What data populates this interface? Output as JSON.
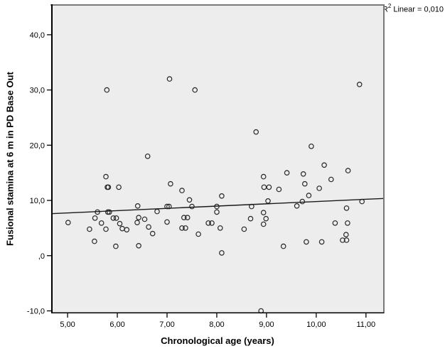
{
  "chart_data": {
    "type": "scatter",
    "title": "",
    "xlabel": "Chronological age (years)",
    "ylabel": "Fusional stamina at 6 m in PD Base Out",
    "annotation": {
      "base": "R",
      "sup": "2",
      "rest": " Linear = 0,010"
    },
    "legend": "none",
    "grid": false,
    "xlim": [
      4.67,
      11.36
    ],
    "ylim": [
      -10.45,
      45.52
    ],
    "x_ticks": {
      "values": [
        5,
        6,
        7,
        8,
        9,
        10,
        11
      ],
      "labels": [
        "5,00",
        "6,00",
        "7,00",
        "8,00",
        "9,00",
        "10,00",
        "11,00"
      ]
    },
    "y_ticks": {
      "values": [
        40,
        30,
        20,
        10,
        0,
        -10
      ],
      "labels": [
        "40,0",
        "30,0",
        "20,0",
        "10,0",
        ",0",
        "-10,0"
      ]
    },
    "regression_line": {
      "x1": 4.67,
      "y1": 7.6,
      "x2": 11.36,
      "y2": 10.36,
      "r2": 0.01
    },
    "points": [
      [
        5.01,
        6.0
      ],
      [
        5.44,
        4.8
      ],
      [
        5.54,
        2.6
      ],
      [
        5.55,
        6.8
      ],
      [
        5.6,
        7.9
      ],
      [
        5.68,
        5.9
      ],
      [
        5.77,
        14.3
      ],
      [
        5.77,
        4.8
      ],
      [
        5.79,
        30.0
      ],
      [
        5.8,
        12.4
      ],
      [
        5.82,
        12.4
      ],
      [
        5.81,
        7.9
      ],
      [
        5.84,
        7.9
      ],
      [
        5.92,
        6.8
      ],
      [
        5.97,
        1.7
      ],
      [
        5.98,
        6.8
      ],
      [
        6.03,
        12.4
      ],
      [
        6.05,
        5.8
      ],
      [
        6.1,
        4.9
      ],
      [
        6.19,
        4.7
      ],
      [
        6.4,
        6.0
      ],
      [
        6.41,
        9.0
      ],
      [
        6.43,
        6.9
      ],
      [
        6.43,
        1.8
      ],
      [
        6.55,
        6.6
      ],
      [
        6.61,
        18.0
      ],
      [
        6.63,
        5.2
      ],
      [
        6.71,
        4.0
      ],
      [
        6.8,
        8.0
      ],
      [
        7.0,
        8.9
      ],
      [
        7.04,
        8.9
      ],
      [
        7.0,
        6.1
      ],
      [
        7.05,
        32.0
      ],
      [
        7.07,
        13.0
      ],
      [
        7.3,
        11.8
      ],
      [
        7.3,
        5.0
      ],
      [
        7.34,
        6.9
      ],
      [
        7.37,
        5.0
      ],
      [
        7.41,
        6.9
      ],
      [
        7.45,
        10.1
      ],
      [
        7.5,
        8.9
      ],
      [
        7.56,
        30.0
      ],
      [
        7.63,
        3.9
      ],
      [
        7.83,
        5.9
      ],
      [
        7.9,
        5.9
      ],
      [
        8.0,
        8.9
      ],
      [
        8.0,
        7.9
      ],
      [
        8.07,
        5.0
      ],
      [
        8.1,
        10.8
      ],
      [
        8.1,
        0.5
      ],
      [
        8.55,
        4.8
      ],
      [
        8.68,
        6.7
      ],
      [
        8.7,
        8.9
      ],
      [
        8.79,
        22.4
      ],
      [
        8.89,
        -10.0
      ],
      [
        8.94,
        14.3
      ],
      [
        8.94,
        7.8
      ],
      [
        8.94,
        5.7
      ],
      [
        8.95,
        12.4
      ],
      [
        8.99,
        6.7
      ],
      [
        9.03,
        9.9
      ],
      [
        9.05,
        12.4
      ],
      [
        9.25,
        12.0
      ],
      [
        9.34,
        1.7
      ],
      [
        9.41,
        15.0
      ],
      [
        9.61,
        9.0
      ],
      [
        9.72,
        9.8
      ],
      [
        9.74,
        14.8
      ],
      [
        9.77,
        13.0
      ],
      [
        9.8,
        2.5
      ],
      [
        9.85,
        10.9
      ],
      [
        9.9,
        19.8
      ],
      [
        10.06,
        12.2
      ],
      [
        10.11,
        2.5
      ],
      [
        10.16,
        16.4
      ],
      [
        10.3,
        13.8
      ],
      [
        10.38,
        5.9
      ],
      [
        10.53,
        2.8
      ],
      [
        10.6,
        3.8
      ],
      [
        10.61,
        8.6
      ],
      [
        10.61,
        2.8
      ],
      [
        10.63,
        5.9
      ],
      [
        10.64,
        15.4
      ],
      [
        10.87,
        31.0
      ],
      [
        10.92,
        9.8
      ]
    ],
    "colors": {
      "plot_bg": "#ededed",
      "frame": "#7a7a7a",
      "axis": "#000000",
      "marker_stroke": "#262626",
      "line": "#1a1a1a",
      "text": "#000000"
    }
  }
}
